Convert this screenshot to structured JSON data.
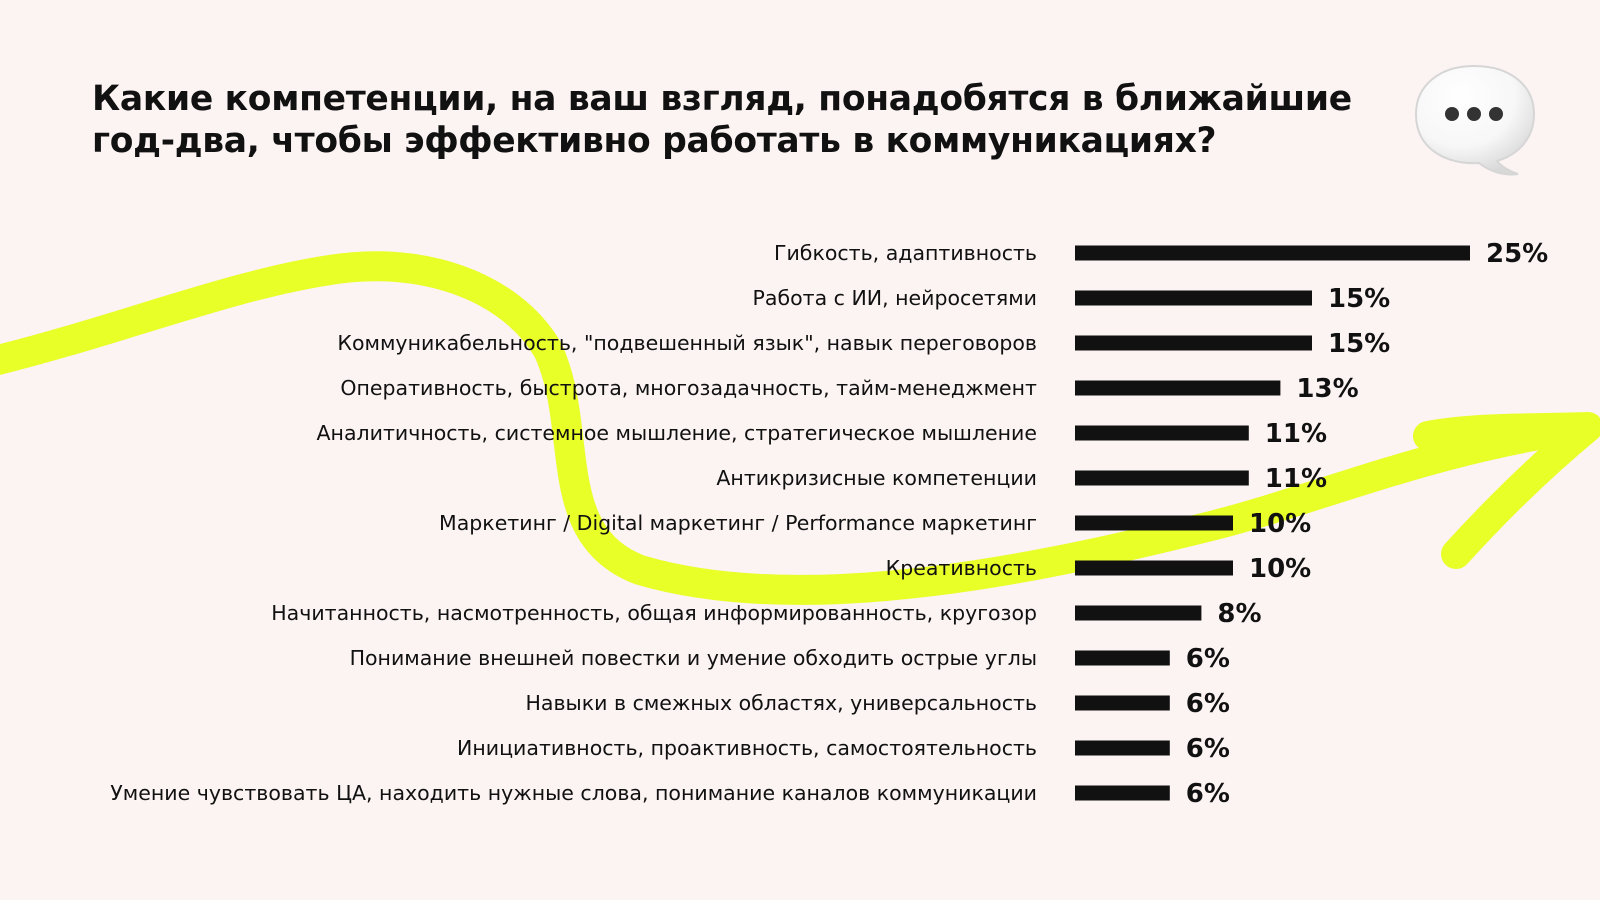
{
  "title_lines": [
    "Какие компетенции, на ваш взгляд, понадобятся в ближайшие",
    "год-два, чтобы эффективно работать в коммуникациях?"
  ],
  "colors": {
    "background": "#fcf3f3",
    "bar": "#111111",
    "highlight": "#e8ff1f",
    "text": "#111111"
  },
  "icons": {
    "speech_bubble": "speech-bubble-icon"
  },
  "chart_data": {
    "type": "bar",
    "orientation": "horizontal",
    "categories": [
      "Гибкость, адаптивность",
      "Работа с ИИ, нейросетями",
      "Коммуникабельность, \"подвешенный язык\", навык переговоров",
      "Оперативность, быстрота, многозадачность, тайм-менеджмент",
      "Аналитичность, системное мышление, стратегическое мышление",
      "Антикризисные компетенции",
      "Маркетинг / Digital маркетинг / Performance маркетинг",
      "Креативность",
      "Начитанность, насмотренность, общая информированность, кругозор",
      "Понимание внешней повестки и умение обходить острые углы",
      "Навыки в смежных областях, универсальность",
      "Инициативность, проактивность, самостоятельность",
      "Умение чувствовать ЦА, находить нужные слова, понимание каналов коммуникации"
    ],
    "values": [
      25,
      15,
      15,
      13,
      11,
      11,
      10,
      10,
      8,
      6,
      6,
      6,
      6
    ],
    "value_labels": [
      "25%",
      "15%",
      "15%",
      "13%",
      "11%",
      "11%",
      "10%",
      "10%",
      "8%",
      "6%",
      "6%",
      "6%",
      "6%"
    ],
    "xlim": [
      0,
      25
    ],
    "unit": "%",
    "grid": false,
    "legend": "none"
  }
}
